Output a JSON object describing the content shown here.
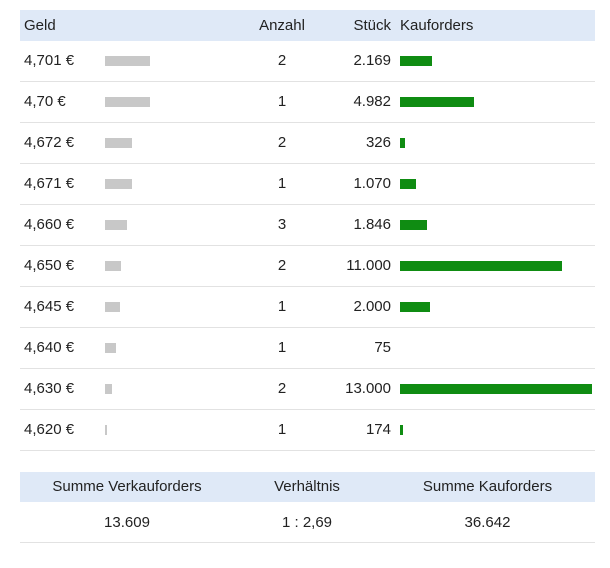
{
  "orderbook": {
    "headers": {
      "price": "Geld",
      "anzahl": "Anzahl",
      "stueck": "Stück",
      "kauforders": "Kauforders"
    },
    "rows": [
      {
        "price": "4,701 €",
        "anzahl": "2",
        "stueck": "2.169",
        "geld_level": 0.23,
        "kauf_level": 0.167
      },
      {
        "price": "4,70 €",
        "anzahl": "1",
        "stueck": "4.982",
        "geld_level": 0.23,
        "kauf_level": 0.383
      },
      {
        "price": "4,672 €",
        "anzahl": "2",
        "stueck": "326",
        "geld_level": 0.14,
        "kauf_level": 0.025
      },
      {
        "price": "4,671 €",
        "anzahl": "1",
        "stueck": "1.070",
        "geld_level": 0.14,
        "kauf_level": 0.082
      },
      {
        "price": "4,660 €",
        "anzahl": "3",
        "stueck": "1.846",
        "geld_level": 0.115,
        "kauf_level": 0.142
      },
      {
        "price": "4,650 €",
        "anzahl": "2",
        "stueck": "11.000",
        "geld_level": 0.085,
        "kauf_level": 0.846
      },
      {
        "price": "4,645 €",
        "anzahl": "1",
        "stueck": "2.000",
        "geld_level": 0.075,
        "kauf_level": 0.154
      },
      {
        "price": "4,640 €",
        "anzahl": "1",
        "stueck": "75",
        "geld_level": 0.055,
        "kauf_level": 0.0
      },
      {
        "price": "4,630 €",
        "anzahl": "2",
        "stueck": "13.000",
        "geld_level": 0.035,
        "kauf_level": 1.0
      },
      {
        "price": "4,620 €",
        "anzahl": "1",
        "stueck": "174",
        "geld_level": 0.01,
        "kauf_level": 0.013
      }
    ]
  },
  "summary": {
    "headers": {
      "verkauf": "Summe Verkauforders",
      "verhaeltnis": "Verhältnis",
      "kauf": "Summe Kauforders"
    },
    "values": {
      "verkauf": "13.609",
      "verhaeltnis": "1 : 2,69",
      "kauf": "36.642"
    }
  },
  "colors": {
    "header_bg": "#dfe9f7",
    "geld_bar": "#c8c8c8",
    "kauf_bar": "#0f8c12",
    "row_border": "#e2e2e2"
  }
}
